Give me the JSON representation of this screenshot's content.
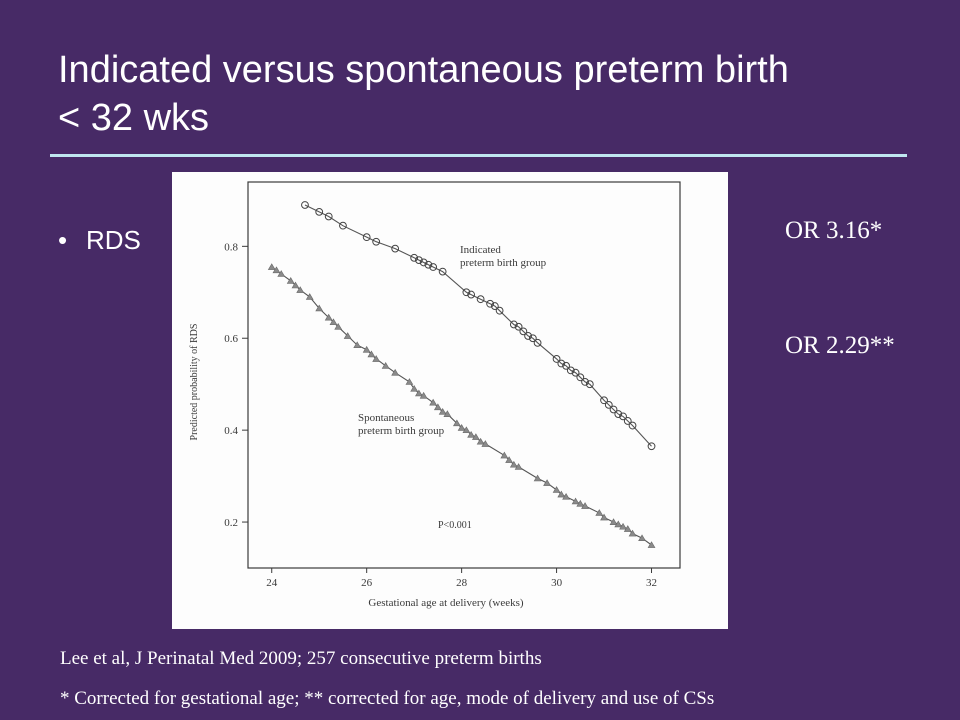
{
  "slide": {
    "title_line1": "Indicated versus spontaneous preterm birth",
    "title_line2": "< 32 wks",
    "bullet": "RDS",
    "or_indicated": "OR 3.16*",
    "or_spontaneous": "OR 2.29**",
    "reference": "Lee et al, J Perinatal Med 2009; 257 consecutive preterm births",
    "footnote": "* Corrected for gestational age; ** corrected for age, mode of delivery and use of  CSs"
  },
  "colors": {
    "background": "#472a66",
    "rule": "#bfe6ef",
    "ink": "#3a3a3a"
  },
  "chart_data": {
    "type": "line",
    "xlabel": "Gestational age at delivery (weeks)",
    "ylabel": "Predicted probability of RDS",
    "xlim": [
      23.5,
      32.6
    ],
    "ylim": [
      0.1,
      0.94
    ],
    "xticks": [
      "24",
      "26",
      "28",
      "30",
      "32"
    ],
    "yticks": [
      "0.2",
      "0.4",
      "0.6",
      "0.8"
    ],
    "grid": false,
    "annotation": "P<0.001",
    "series": [
      {
        "name": "Indicated preterm birth group",
        "marker": "circle",
        "x": [
          24.7,
          25.0,
          25.2,
          25.5,
          26.0,
          26.2,
          26.6,
          27.0,
          27.1,
          27.2,
          27.3,
          27.4,
          27.6,
          28.1,
          28.2,
          28.4,
          28.6,
          28.7,
          28.8,
          29.1,
          29.2,
          29.3,
          29.4,
          29.5,
          29.6,
          30.0,
          30.1,
          30.2,
          30.3,
          30.4,
          30.5,
          30.6,
          30.7,
          31.0,
          31.1,
          31.2,
          31.3,
          31.4,
          31.5,
          31.6,
          32.0
        ],
        "y": [
          0.89,
          0.875,
          0.865,
          0.845,
          0.82,
          0.81,
          0.795,
          0.775,
          0.77,
          0.765,
          0.76,
          0.755,
          0.745,
          0.7,
          0.695,
          0.685,
          0.675,
          0.67,
          0.66,
          0.63,
          0.625,
          0.615,
          0.605,
          0.6,
          0.59,
          0.555,
          0.545,
          0.54,
          0.53,
          0.525,
          0.515,
          0.505,
          0.5,
          0.465,
          0.455,
          0.445,
          0.435,
          0.43,
          0.42,
          0.41,
          0.365
        ]
      },
      {
        "name": "Spontaneous preterm birth group",
        "marker": "triangle",
        "x": [
          24.0,
          24.1,
          24.2,
          24.4,
          24.5,
          24.6,
          24.8,
          25.0,
          25.2,
          25.3,
          25.4,
          25.6,
          25.8,
          26.0,
          26.1,
          26.2,
          26.4,
          26.6,
          26.9,
          27.0,
          27.1,
          27.2,
          27.4,
          27.5,
          27.6,
          27.7,
          27.9,
          28.0,
          28.1,
          28.2,
          28.3,
          28.4,
          28.5,
          28.9,
          29.0,
          29.1,
          29.2,
          29.6,
          29.8,
          30.0,
          30.1,
          30.2,
          30.4,
          30.5,
          30.6,
          30.9,
          31.0,
          31.2,
          31.3,
          31.4,
          31.5,
          31.6,
          31.8,
          32.0
        ],
        "y": [
          0.755,
          0.748,
          0.74,
          0.725,
          0.715,
          0.705,
          0.69,
          0.665,
          0.645,
          0.635,
          0.625,
          0.605,
          0.585,
          0.575,
          0.565,
          0.555,
          0.54,
          0.525,
          0.505,
          0.49,
          0.48,
          0.475,
          0.46,
          0.45,
          0.44,
          0.435,
          0.415,
          0.405,
          0.4,
          0.39,
          0.385,
          0.375,
          0.37,
          0.345,
          0.335,
          0.325,
          0.32,
          0.295,
          0.285,
          0.27,
          0.26,
          0.255,
          0.245,
          0.24,
          0.235,
          0.22,
          0.21,
          0.2,
          0.195,
          0.19,
          0.185,
          0.175,
          0.165,
          0.15
        ]
      }
    ]
  }
}
